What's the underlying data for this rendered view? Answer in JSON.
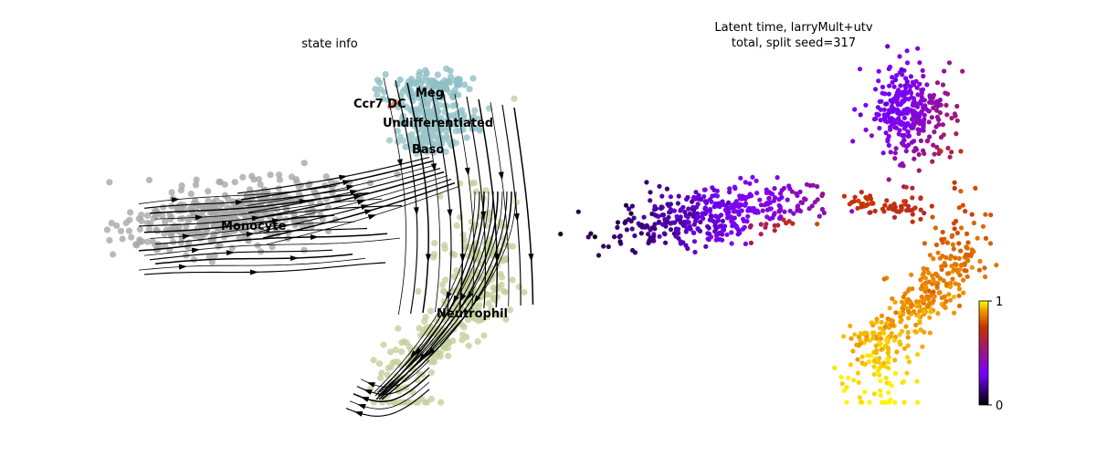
{
  "chart_data": [
    {
      "type": "scatter",
      "title": "state info",
      "overlay": "velocity streamlines",
      "legend": "labels on data",
      "grid": false,
      "axes_visible": false,
      "colors": {
        "Meg": "#8fbfc6",
        "Ccr7 DC": "#e58a6a",
        "Undifferentiated": "#93c3c9",
        "Baso": "#9cc6cb",
        "Monocyte": "#a8a8a8",
        "Neutrophil": "#c6cf9c",
        "streamline": "#000000"
      },
      "clusters": [
        {
          "label": "Meg",
          "center": [
            4.6,
            9.1
          ],
          "spread": [
            0.9,
            0.45
          ],
          "n": 120
        },
        {
          "label": "Ccr7 DC",
          "center": [
            3.2,
            8.1
          ],
          "spread": [
            0.15,
            0.1
          ],
          "n": 4
        },
        {
          "label": "Undifferentiated",
          "center": [
            4.9,
            7.3
          ],
          "spread": [
            0.8,
            0.5
          ],
          "n": 110
        },
        {
          "label": "Baso",
          "center": [
            4.5,
            6.1
          ],
          "spread": [
            0.6,
            0.45
          ],
          "n": 80
        },
        {
          "label": "Monocyte",
          "center": [
            -4.0,
            1.8
          ],
          "spread": [
            2.2,
            0.9
          ],
          "n": 420
        },
        {
          "label": "Neutrophil",
          "center": [
            6.8,
            -3.5
          ],
          "spread": [
            0.8,
            2.8
          ],
          "n": 360
        }
      ],
      "xlim": [
        -8,
        9
      ],
      "ylim": [
        -9,
        11
      ]
    },
    {
      "type": "scatter",
      "title": "Latent time, larryMult+utv\ntotal, split seed=317",
      "title_lines": [
        "Latent time, larryMult+utv",
        "total, split seed=317"
      ],
      "colormap": "gnuplot",
      "colorbar": {
        "min": 0,
        "max": 1,
        "ticks": [
          "0",
          "1"
        ]
      },
      "grid": false,
      "axes_visible": false,
      "xlim": [
        -8,
        9
      ],
      "ylim": [
        -9,
        11
      ]
    }
  ]
}
